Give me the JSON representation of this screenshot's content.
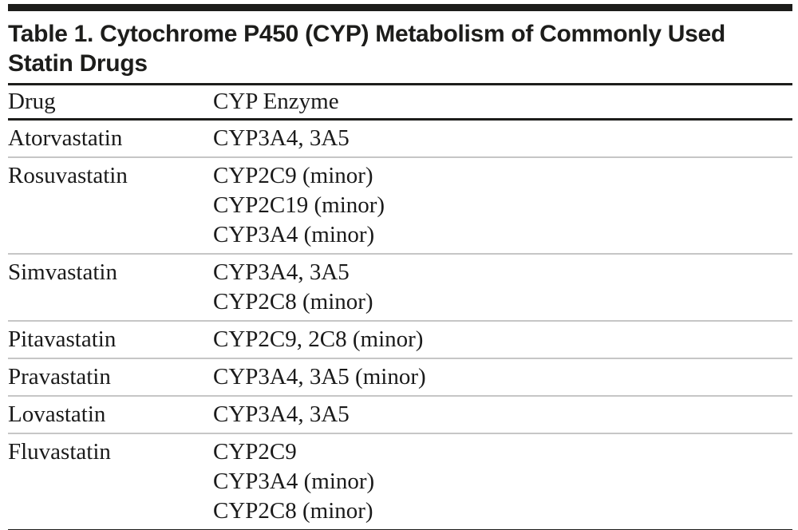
{
  "page": {
    "background": "#ffffff",
    "rule_dark": "#1d1d1b",
    "rule_light": "#c6c6c6",
    "text_color": "#1a1a1a"
  },
  "table": {
    "title": "Table 1. Cytochrome P450 (CYP) Metabolism of Commonly Used Statin Drugs",
    "columns": [
      "Drug",
      "CYP Enzyme"
    ],
    "rows": [
      {
        "drug": "Atorvastatin",
        "enzymes": [
          "CYP3A4, 3A5"
        ]
      },
      {
        "drug": "Rosuvastatin",
        "enzymes": [
          "CYP2C9 (minor)",
          "CYP2C19 (minor)",
          "CYP3A4 (minor)"
        ]
      },
      {
        "drug": "Simvastatin",
        "enzymes": [
          "CYP3A4, 3A5",
          "CYP2C8 (minor)"
        ]
      },
      {
        "drug": "Pitavastatin",
        "enzymes": [
          "CYP2C9, 2C8 (minor)"
        ]
      },
      {
        "drug": "Pravastatin",
        "enzymes": [
          "CYP3A4, 3A5 (minor)"
        ]
      },
      {
        "drug": "Lovastatin",
        "enzymes": [
          "CYP3A4, 3A5"
        ]
      },
      {
        "drug": "Fluvastatin",
        "enzymes": [
          "CYP2C9",
          "CYP3A4 (minor)",
          "CYP2C8 (minor)"
        ]
      }
    ]
  }
}
